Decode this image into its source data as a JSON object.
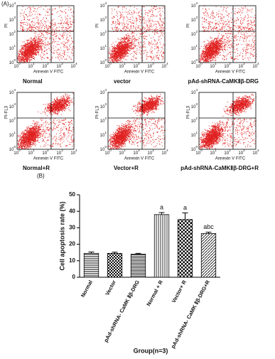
{
  "panel_a": {
    "label": "(A)",
    "tick_base": "10",
    "tick_exponents": [
      "0",
      "1",
      "2",
      "3",
      "4"
    ],
    "x_label": "Annexin V FITC",
    "plots": [
      {
        "title": "Normal",
        "y_label": "PI"
      },
      {
        "title": "vector",
        "y_label": "PI"
      },
      {
        "title": "pAd-shRNA-CaMKⅡβ-DRG",
        "y_label": "PI"
      },
      {
        "title": "Normal+R",
        "y_label": "PI-FL3"
      },
      {
        "title": "Vector+R",
        "y_label": "PI-FL3"
      },
      {
        "title": "pAd-shRNA-CaMKⅡβ-DRG+R",
        "y_label": "PI-FL3"
      }
    ]
  },
  "chart_data": {
    "type": "bar",
    "panel_label": "(B)",
    "y_label": "Cell apoptosis rate (%)",
    "x_label": "Group(n=3)",
    "categories": [
      "Normal",
      "Vector",
      "pAd-shRNA- CaMK Ⅱβ-DRG",
      "Normal + R",
      "Vector+ R",
      "pAd-shRNA- CaMK Ⅱβ-DRG+R"
    ],
    "values": [
      14.5,
      14.5,
      14,
      38,
      35,
      26.5
    ],
    "errors": [
      0.8,
      0.7,
      0.5,
      1.2,
      4,
      0.8
    ],
    "annotations": [
      null,
      null,
      null,
      "a",
      "a",
      "abc"
    ],
    "ylim": [
      0,
      50
    ],
    "yticks": [
      0,
      10,
      20,
      30,
      40,
      50
    ]
  }
}
